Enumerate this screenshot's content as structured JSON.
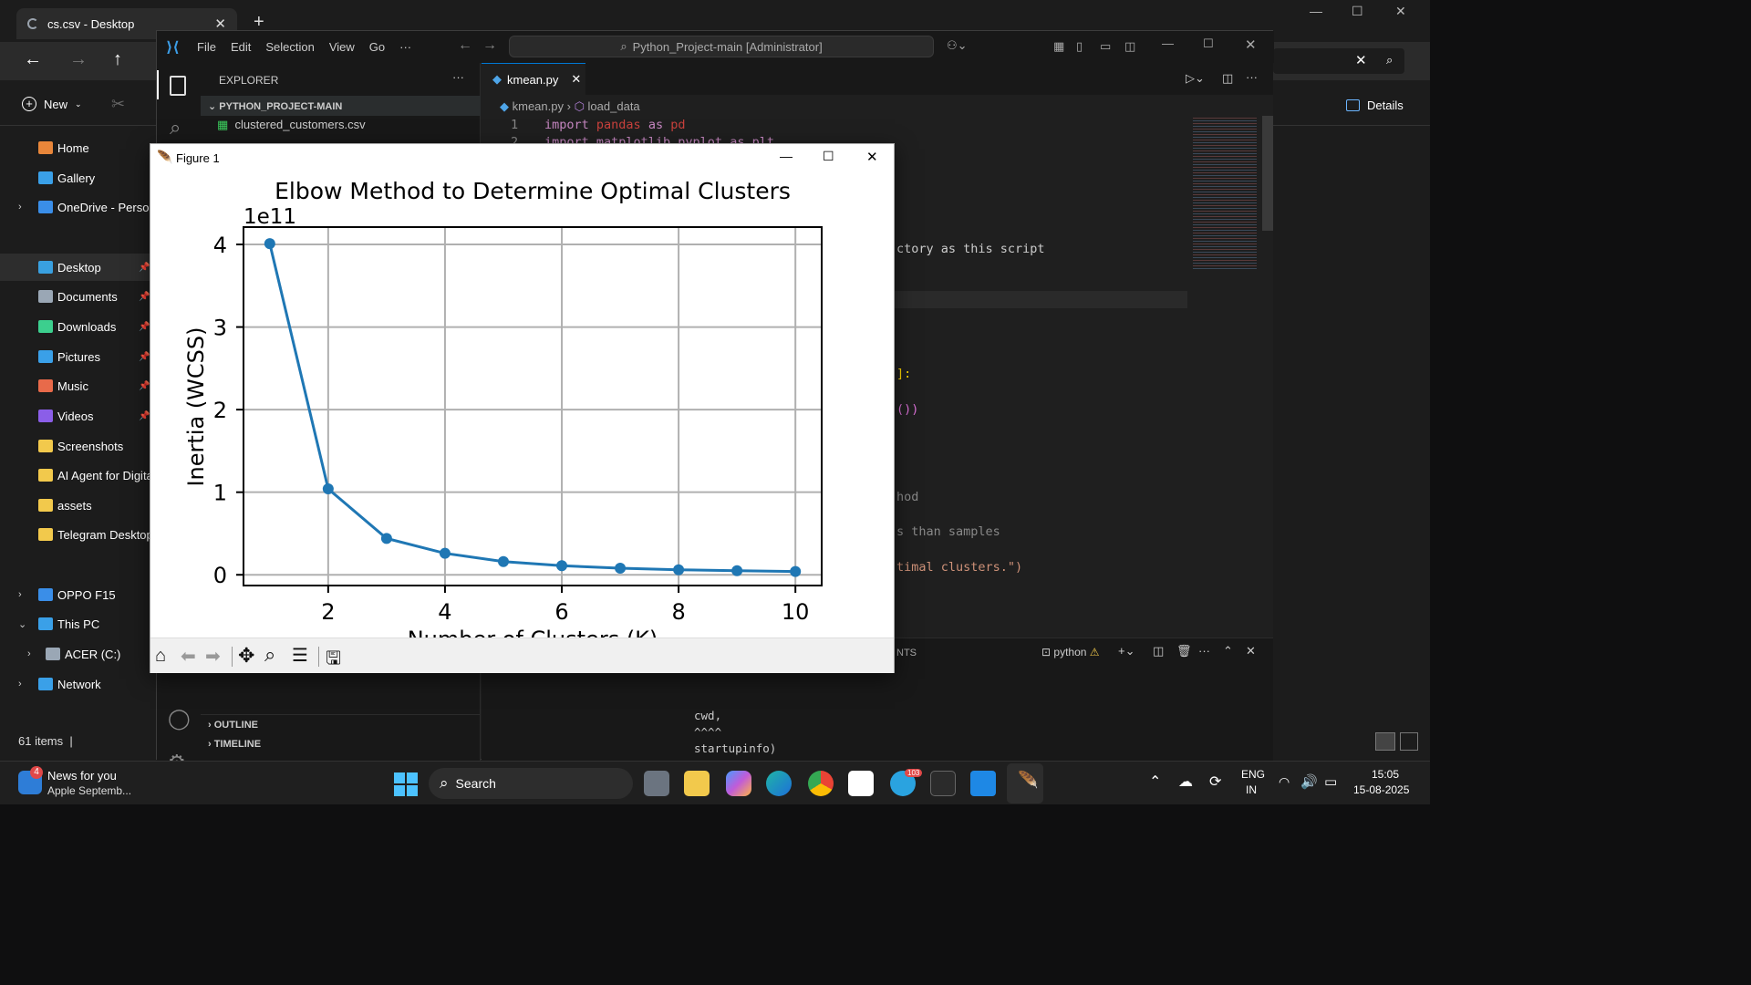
{
  "explorer": {
    "tab_title": "cs.csv - Desktop",
    "new_label": "New",
    "details_label": "Details",
    "status": "61 items",
    "sidebar": [
      {
        "label": "Home",
        "color": "#e8863a"
      },
      {
        "label": "Gallery",
        "color": "#3aa0e8"
      },
      {
        "label": "OneDrive - Persona",
        "color": "#3a8ee8"
      },
      {
        "label": "Desktop",
        "color": "#39a0e0"
      },
      {
        "label": "Documents",
        "color": "#9aa7b5"
      },
      {
        "label": "Downloads",
        "color": "#3ccf8e"
      },
      {
        "label": "Pictures",
        "color": "#3aa0e8"
      },
      {
        "label": "Music",
        "color": "#e86a4a"
      },
      {
        "label": "Videos",
        "color": "#8b5ee8"
      },
      {
        "label": "Screenshots",
        "color": "#f2c94c"
      },
      {
        "label": "AI Agent for Digita",
        "color": "#f2c94c"
      },
      {
        "label": "assets",
        "color": "#f2c94c"
      },
      {
        "label": "Telegram Desktop",
        "color": "#f2c94c"
      },
      {
        "label": "OPPO F15",
        "color": "#3a8ee8"
      },
      {
        "label": "This PC",
        "color": "#3aa0e8"
      },
      {
        "label": "ACER (C:)",
        "color": "#9aa7b5"
      },
      {
        "label": "Network",
        "color": "#3aa0e8"
      }
    ]
  },
  "vscode": {
    "menu": [
      "File",
      "Edit",
      "Selection",
      "View",
      "Go",
      "···"
    ],
    "search": "Python_Project-main [Administrator]",
    "explorer_label": "EXPLORER",
    "project": "PYTHON_PROJECT-MAIN",
    "file": "clustered_customers.csv",
    "tab": "kmean.py",
    "breadcrumb_file": "kmean.py",
    "breadcrumb_symbol": "load_data",
    "outline": "OUTLINE",
    "timeline": "TIMELINE",
    "line1_num": "1",
    "line2_num": "2",
    "code_import": "import",
    "code_pandas": "pandas",
    "code_as": "as",
    "code_pd": "pd",
    "code_line2": "import matplotlib.pyplot as plt",
    "frag1": "ctory as this script",
    "frag2": "]:",
    "frag3": "())",
    "frag4": "hod",
    "frag5": "s than samples",
    "frag6": "timal clusters.\")",
    "terminal_tab_frag": "NTS",
    "terminal_name": "python",
    "term_lines": [
      "cwd,",
      "^^^^",
      "startupinfo)",
      "^^^^^^^^^^^^"
    ]
  },
  "figure": {
    "window_title": "Figure 1",
    "toolbar_icons": [
      "home-icon",
      "back-icon",
      "forward-icon",
      "pan-icon",
      "zoom-icon",
      "configure-icon",
      "save-icon"
    ]
  },
  "chart_data": {
    "type": "line",
    "title": "Elbow Method to Determine Optimal Clusters",
    "xlabel": "Number of Clusters (K)",
    "ylabel": "Inertia (WCSS)",
    "offset_label": "1e11",
    "x": [
      1,
      2,
      3,
      4,
      5,
      6,
      7,
      8,
      9,
      10
    ],
    "y": [
      4.01,
      1.04,
      0.44,
      0.26,
      0.16,
      0.11,
      0.08,
      0.06,
      0.05,
      0.04
    ],
    "xlim": [
      0.55,
      10.45
    ],
    "ylim": [
      -0.13,
      4.21
    ],
    "xticks": [
      2,
      4,
      6,
      8,
      10
    ],
    "yticks": [
      0,
      1,
      2,
      3,
      4
    ],
    "grid": true,
    "color": "#1f77b4"
  },
  "taskbar": {
    "news_title": "News for you",
    "news_sub": "Apple Septemb...",
    "news_badge": "4",
    "search": "Search",
    "lang1": "ENG",
    "lang2": "IN",
    "time": "15:05",
    "date": "15-08-2025",
    "telegram_badge": "103"
  }
}
